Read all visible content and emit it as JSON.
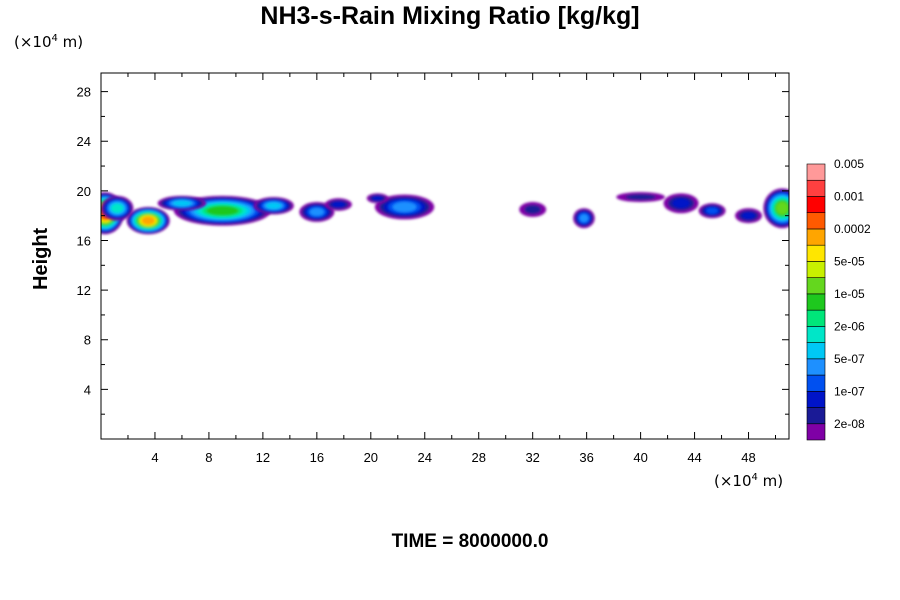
{
  "chart_data": {
    "type": "heatmap",
    "title": "NH3-s-Rain Mixing Ratio [kg/kg]",
    "ylabel": "Height",
    "x_unit_prefix": "(×10",
    "x_unit_exp": "4",
    "x_unit_suffix": " m)",
    "y_unit_prefix": "(×10",
    "y_unit_exp": "4",
    "y_unit_suffix": " m)",
    "xlim": [
      0,
      51
    ],
    "ylim": [
      0,
      29.5
    ],
    "x_ticks": [
      4,
      8,
      12,
      16,
      20,
      24,
      28,
      32,
      36,
      40,
      44,
      48
    ],
    "y_ticks": [
      4,
      8,
      12,
      16,
      20,
      24,
      28
    ],
    "colorbar": {
      "colors": [
        "#7f00a6",
        "#1a1a96",
        "#0014c8",
        "#0050f0",
        "#1e90ff",
        "#00c8f5",
        "#00e6c8",
        "#00e67a",
        "#1ec81e",
        "#64d71e",
        "#c8f000",
        "#ffe600",
        "#ffa500",
        "#ff5a00",
        "#ff0000",
        "#ff4040",
        "#ff9999"
      ],
      "labels": [
        {
          "text": "2e-08",
          "level": 1
        },
        {
          "text": "1e-07",
          "level": 3
        },
        {
          "text": "5e-07",
          "level": 5
        },
        {
          "text": "2e-06",
          "level": 7
        },
        {
          "text": "1e-05",
          "level": 9
        },
        {
          "text": "5e-05",
          "level": 11
        },
        {
          "text": "0.0002",
          "level": 13
        },
        {
          "text": "0.001",
          "level": 15
        },
        {
          "text": "0.005",
          "level": 17
        }
      ]
    },
    "blobs": [
      {
        "x": 0.3,
        "y": 18.2,
        "rx": 1.4,
        "ry": 1.7,
        "level": 14
      },
      {
        "x": 3.5,
        "y": 17.6,
        "rx": 1.6,
        "ry": 1.1,
        "level": 13
      },
      {
        "x": 1.2,
        "y": 18.6,
        "rx": 1.2,
        "ry": 1.0,
        "level": 7
      },
      {
        "x": 9.0,
        "y": 18.4,
        "rx": 3.6,
        "ry": 1.2,
        "level": 9
      },
      {
        "x": 6.0,
        "y": 19.0,
        "rx": 1.8,
        "ry": 0.6,
        "level": 6
      },
      {
        "x": 12.8,
        "y": 18.8,
        "rx": 1.5,
        "ry": 0.7,
        "level": 6
      },
      {
        "x": 16.0,
        "y": 18.3,
        "rx": 1.3,
        "ry": 0.8,
        "level": 5
      },
      {
        "x": 17.6,
        "y": 18.9,
        "rx": 1.0,
        "ry": 0.5,
        "level": 3
      },
      {
        "x": 22.5,
        "y": 18.7,
        "rx": 2.2,
        "ry": 1.0,
        "level": 5
      },
      {
        "x": 20.5,
        "y": 19.4,
        "rx": 0.8,
        "ry": 0.4,
        "level": 3
      },
      {
        "x": 32.0,
        "y": 18.5,
        "rx": 1.0,
        "ry": 0.6,
        "level": 2
      },
      {
        "x": 35.8,
        "y": 17.8,
        "rx": 0.8,
        "ry": 0.8,
        "level": 5
      },
      {
        "x": 40.0,
        "y": 19.5,
        "rx": 1.8,
        "ry": 0.4,
        "level": 2
      },
      {
        "x": 43.0,
        "y": 19.0,
        "rx": 1.3,
        "ry": 0.8,
        "level": 3
      },
      {
        "x": 45.3,
        "y": 18.4,
        "rx": 1.0,
        "ry": 0.6,
        "level": 4
      },
      {
        "x": 48.0,
        "y": 18.0,
        "rx": 1.0,
        "ry": 0.6,
        "level": 3
      },
      {
        "x": 50.5,
        "y": 18.6,
        "rx": 1.4,
        "ry": 1.6,
        "level": 10
      }
    ]
  },
  "footer": {
    "time_label": "TIME = 8000000.0"
  }
}
